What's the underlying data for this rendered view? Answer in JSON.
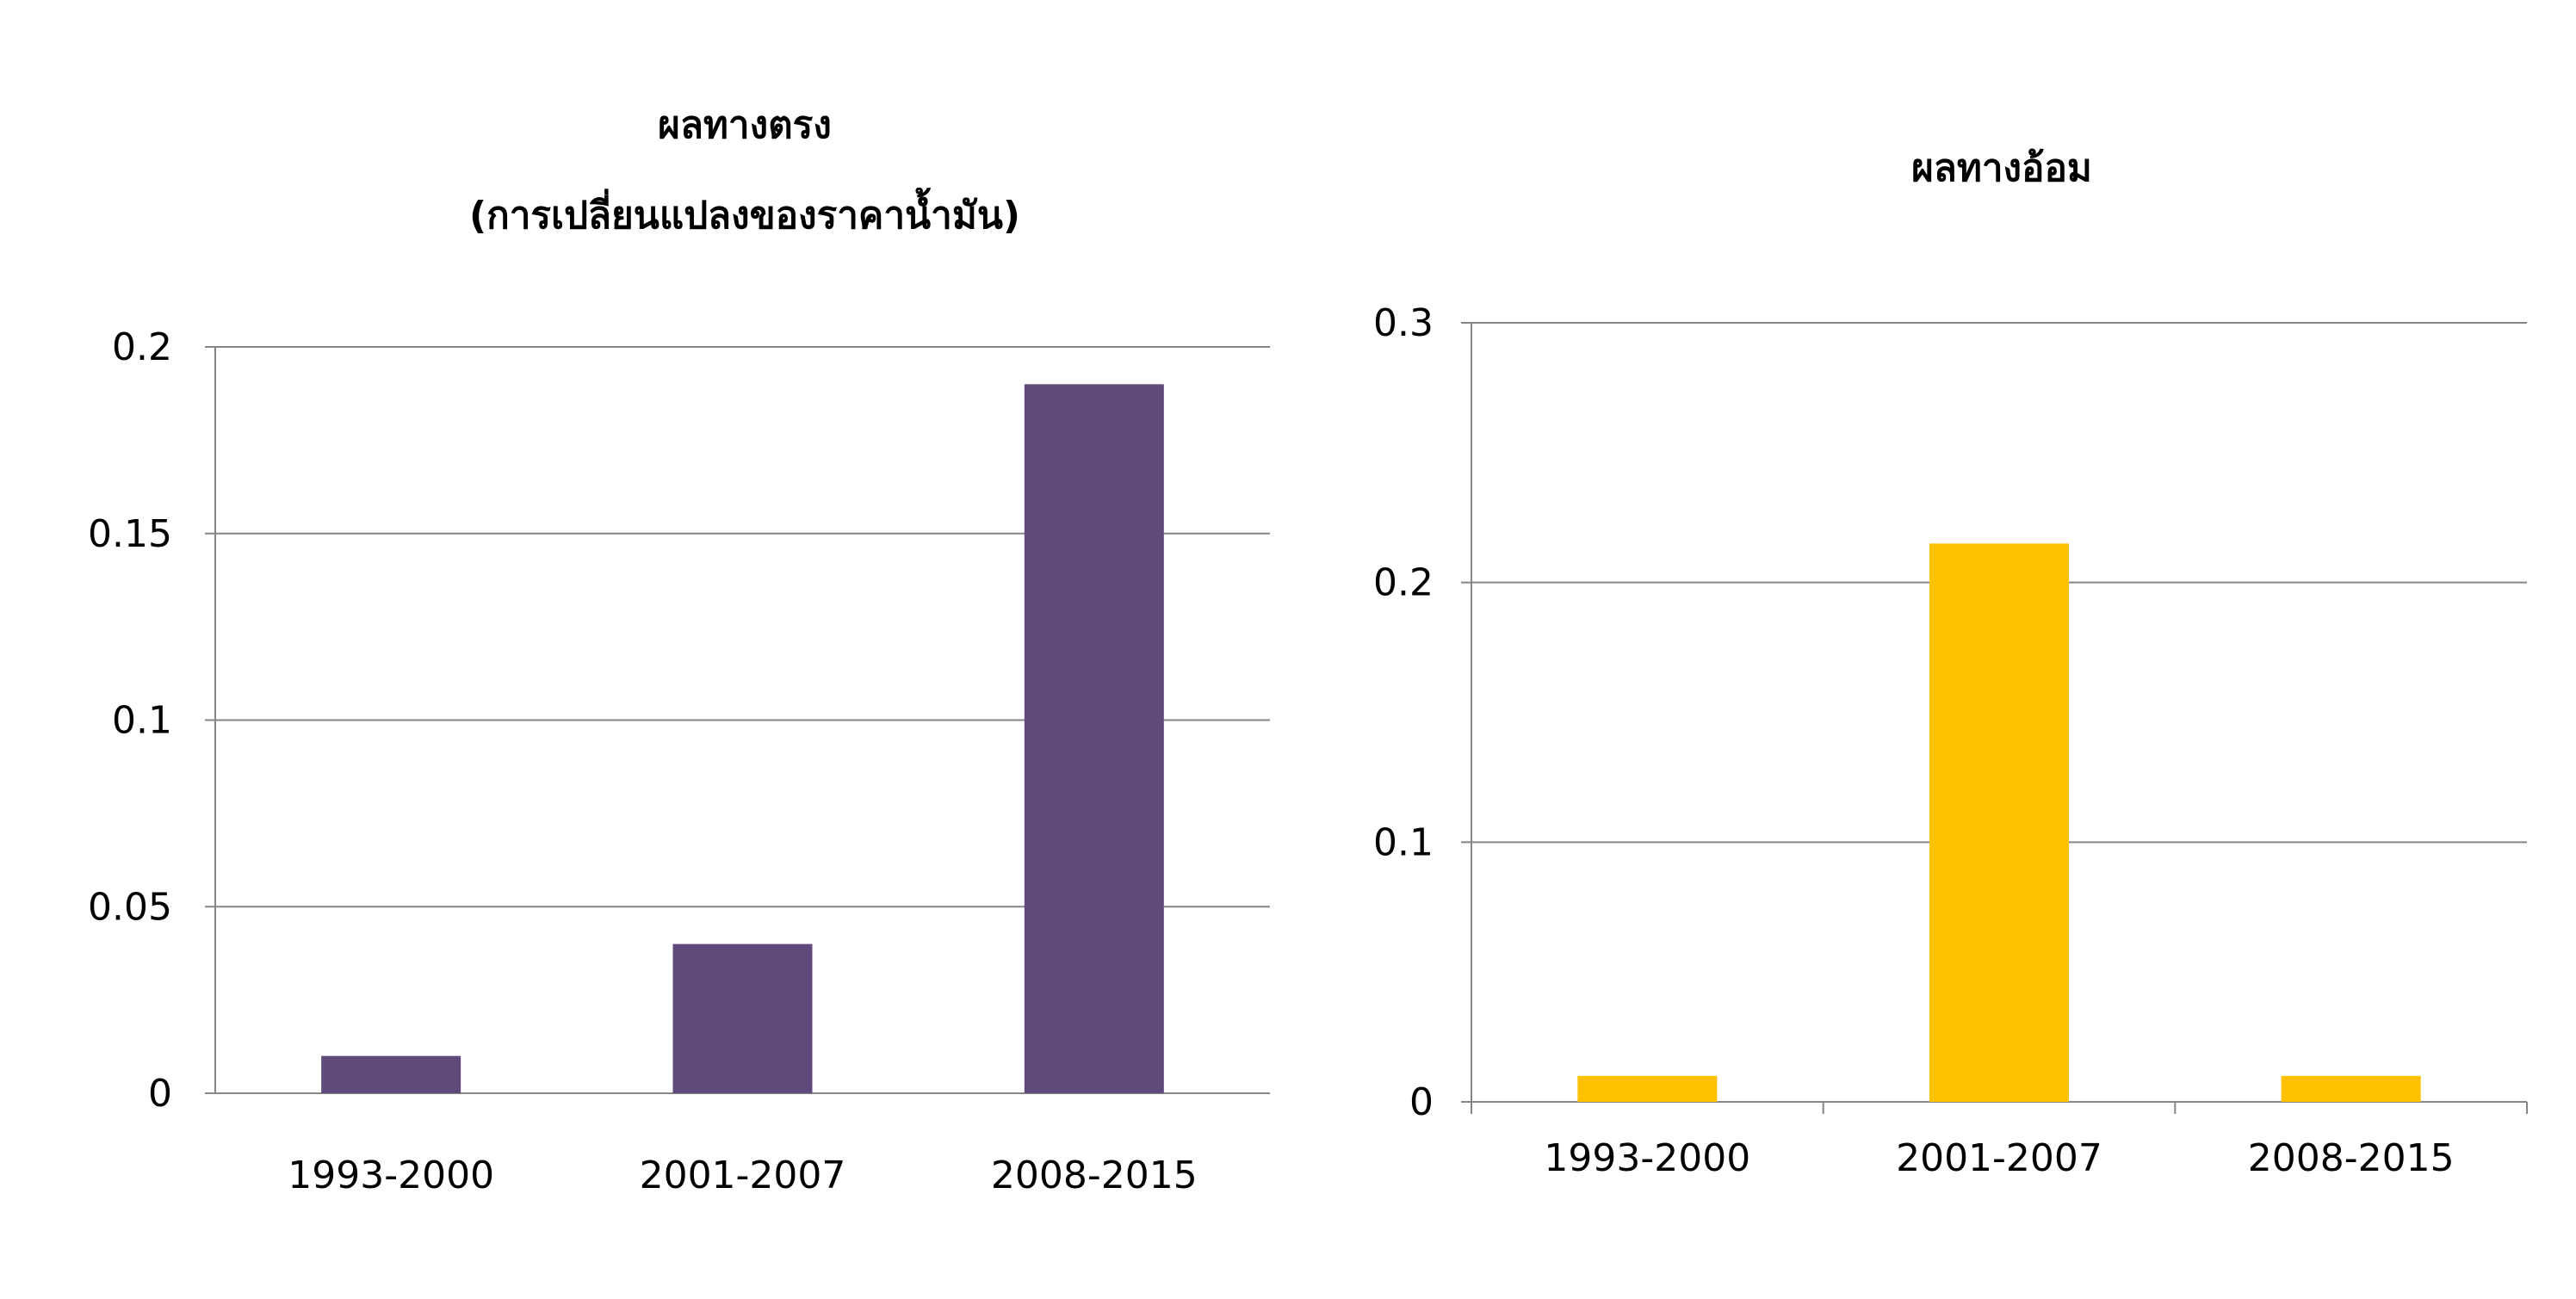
{
  "chart_data": [
    {
      "type": "bar",
      "title": "ผลทางตรง",
      "subtitle": "(การเปลี่ยนแปลงของราคาน้ำมัน)",
      "categories": [
        "1993-2000",
        "2001-2007",
        "2008-2015"
      ],
      "values": [
        0.01,
        0.04,
        0.19
      ],
      "yticks": [
        "0",
        "0.05",
        "0.1",
        "0.15",
        "0.2"
      ],
      "ylim": [
        0,
        0.2
      ],
      "grid": true,
      "legend": "none",
      "color": "#604a7b"
    },
    {
      "type": "bar",
      "title": "ผลทางอ้อม",
      "categories": [
        "1993-2000",
        "2001-2007",
        "2008-2015"
      ],
      "values": [
        0.01,
        0.215,
        0.01
      ],
      "yticks": [
        "0",
        "0.1",
        "0.2",
        "0.3"
      ],
      "ylim": [
        0,
        0.3
      ],
      "grid": true,
      "legend": "none",
      "color": "#ffc000"
    }
  ]
}
